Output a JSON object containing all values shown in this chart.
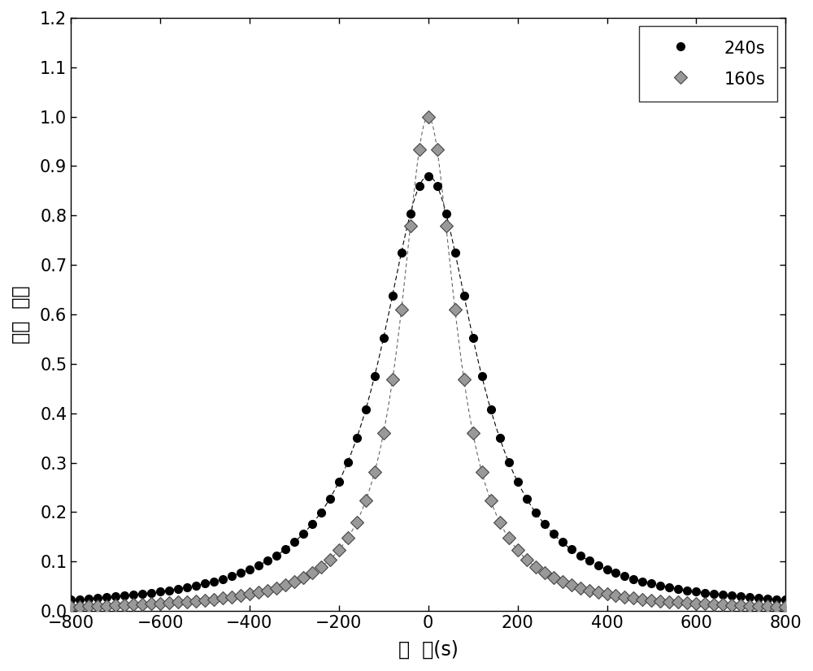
{
  "title": "",
  "xlabel": "角  度(s)",
  "ylabel": "相对  强度",
  "xlim": [
    -800,
    800
  ],
  "ylim": [
    0.0,
    1.2
  ],
  "xticks": [
    -800,
    -600,
    -400,
    -200,
    0,
    200,
    400,
    600,
    800
  ],
  "yticks": [
    0.0,
    0.1,
    0.2,
    0.3,
    0.4,
    0.5,
    0.6,
    0.7,
    0.8,
    0.9,
    1.0,
    1.1,
    1.2
  ],
  "series1_label": "240s",
  "series1_color": "#000000",
  "series1_marker": "o",
  "series1_markersize": 7,
  "series2_label": "160s",
  "series2_color": "#666666",
  "series2_marker": "D",
  "series2_markersize": 8,
  "gamma1": 130,
  "gamma2": 75,
  "peak1": 0.88,
  "peak2": 1.0,
  "background_color": "#ffffff",
  "figsize": [
    10.0,
    8.26
  ],
  "dpi": 100,
  "marker_step1": 20,
  "marker_step2": 20
}
